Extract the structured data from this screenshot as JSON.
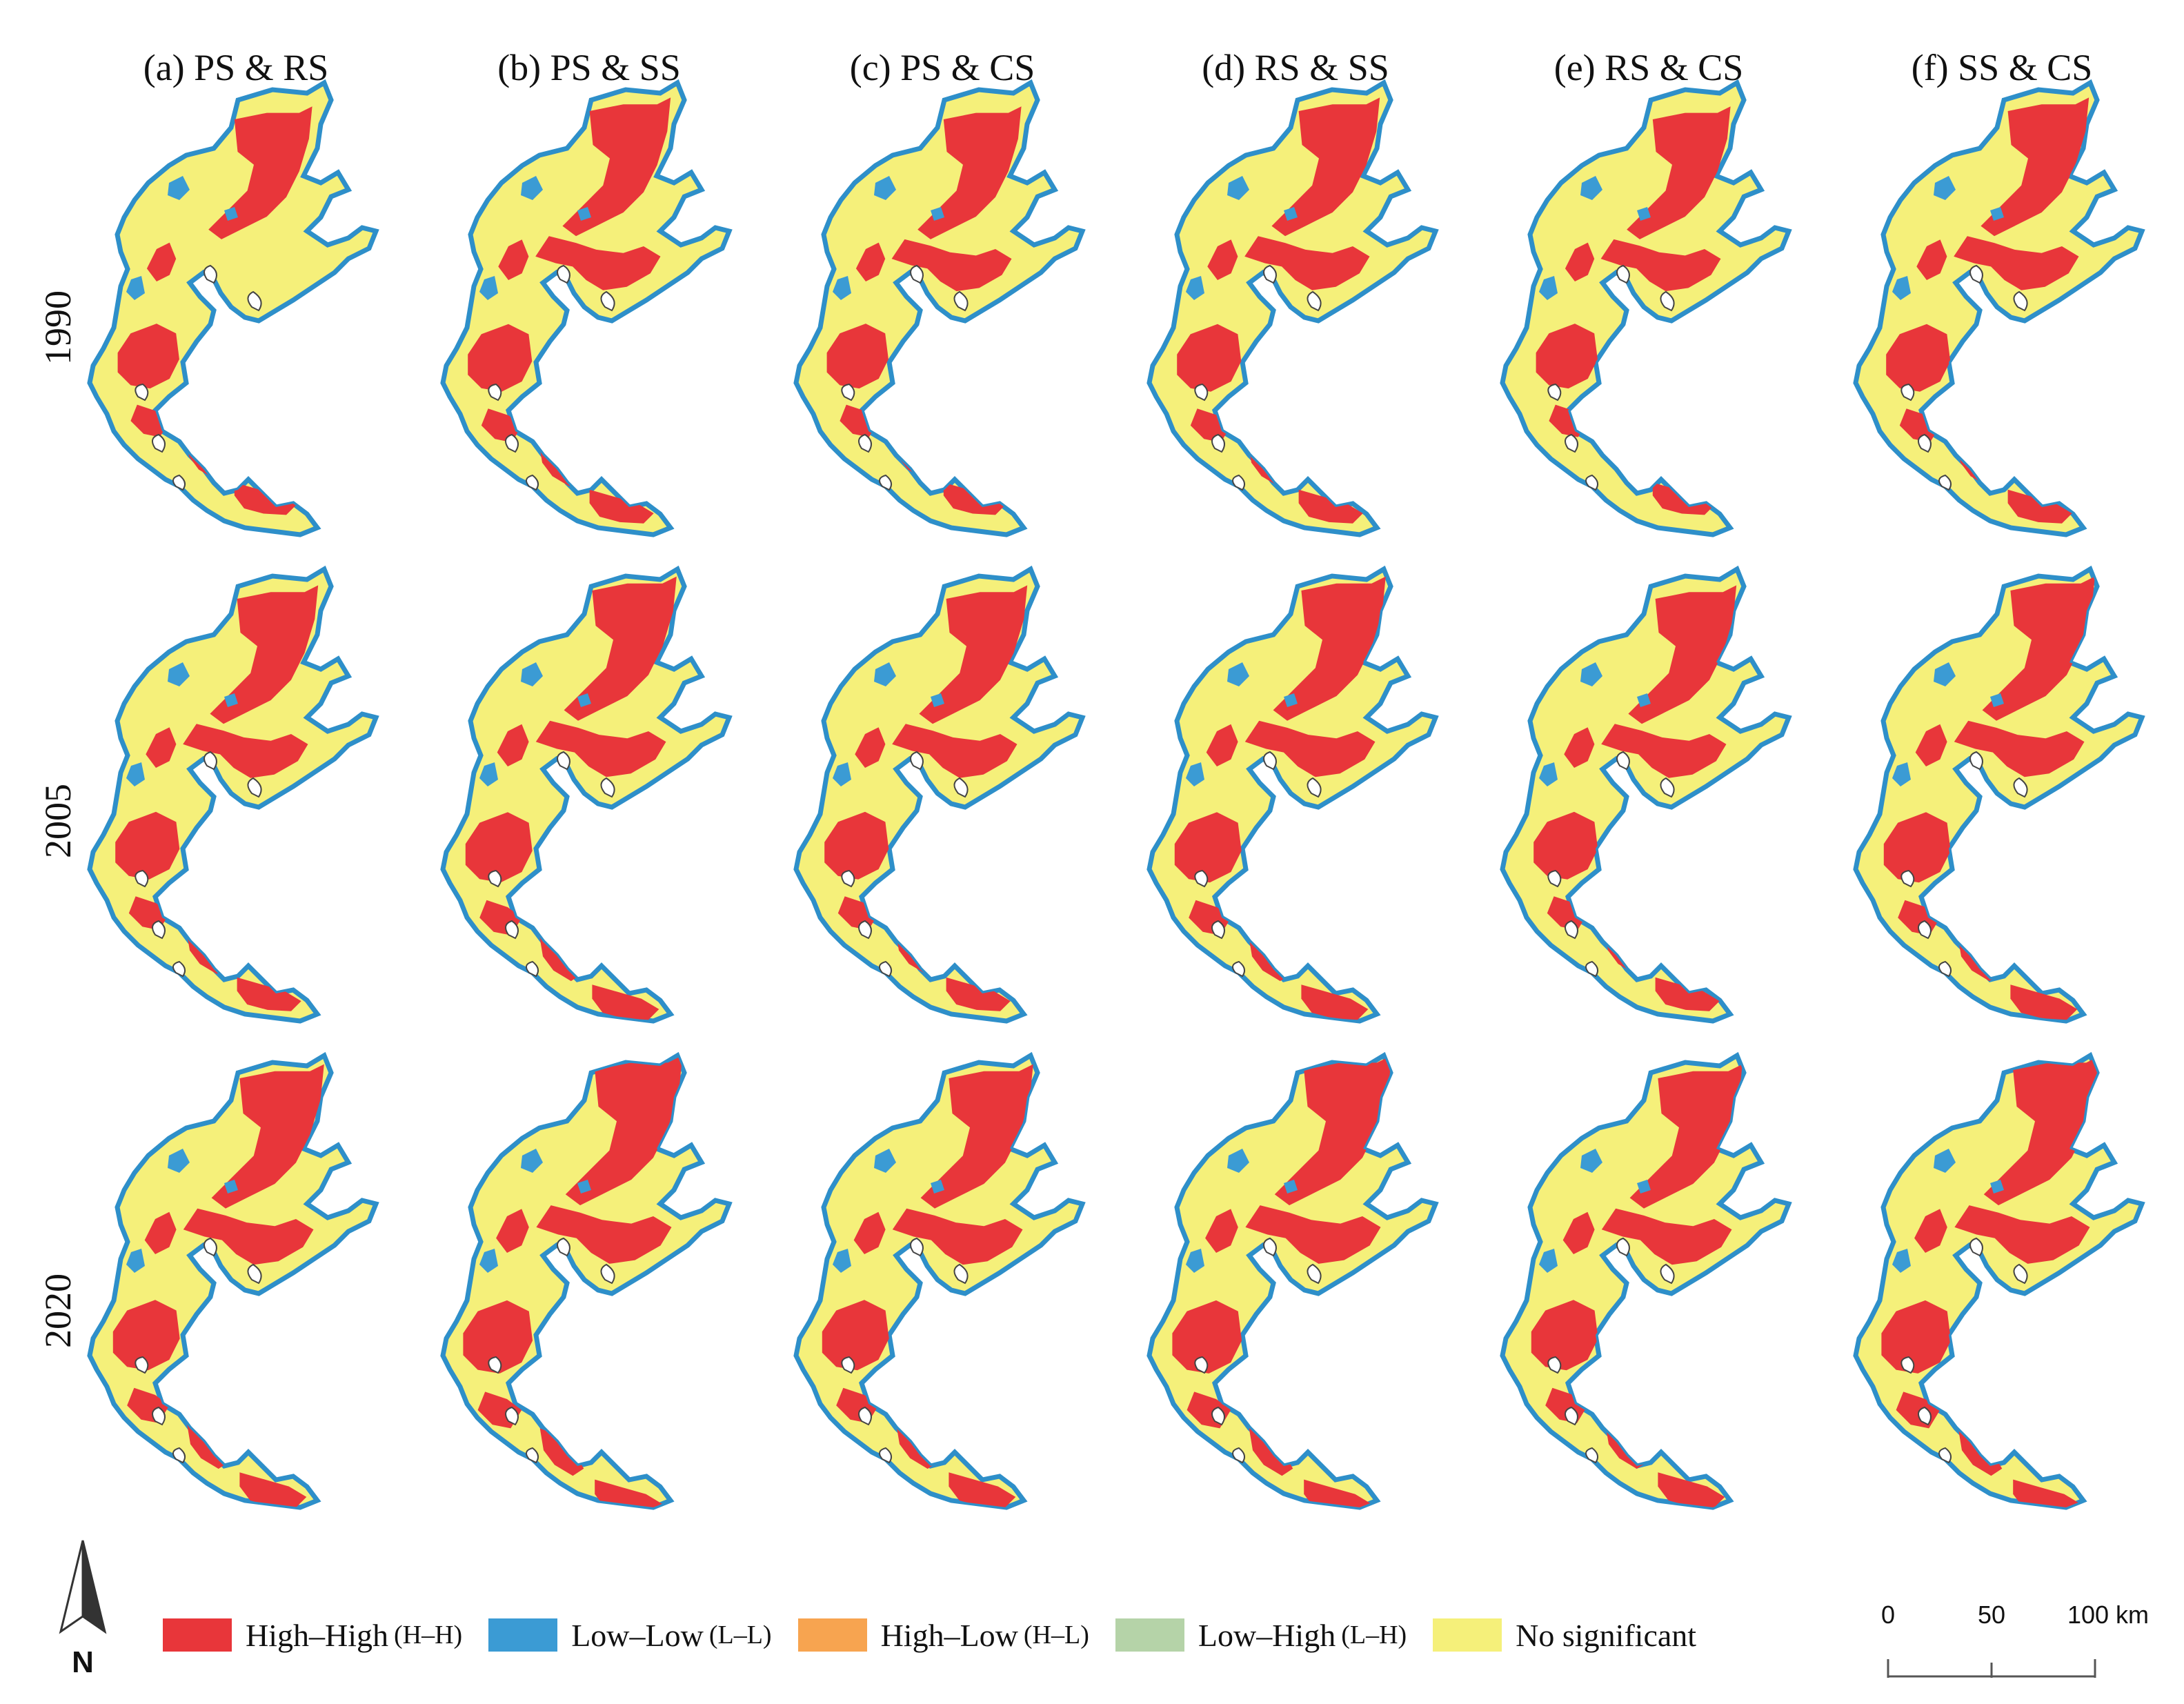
{
  "column_titles": [
    "(a) PS & RS",
    "(b) PS & SS",
    "(c) PS & CS",
    "(d) RS & SS",
    "(e) RS & CS",
    "(f) SS & CS"
  ],
  "row_labels": [
    "1990",
    "2005",
    "2020"
  ],
  "legend": [
    {
      "label": "High–High",
      "abbr": "(H–H)",
      "color": "#e8363a"
    },
    {
      "label": "Low–Low",
      "abbr": "(L–L)",
      "color": "#3b9bd4"
    },
    {
      "label": "High–Low",
      "abbr": "(H–L)",
      "color": "#f7a450"
    },
    {
      "label": "Low–High",
      "abbr": "(L–H)",
      "color": "#b5d3a8"
    },
    {
      "label": "No significant",
      "abbr": "",
      "color": "#f5f07a"
    }
  ],
  "scale_bar": {
    "ticks": [
      "0",
      "50",
      "100 km"
    ]
  },
  "north_arrow": {
    "label": "N"
  },
  "colors": {
    "outline": "#2e8fc9",
    "background_region": "#f5f07a",
    "hot": "#e8363a",
    "cold": "#3b9bd4"
  }
}
